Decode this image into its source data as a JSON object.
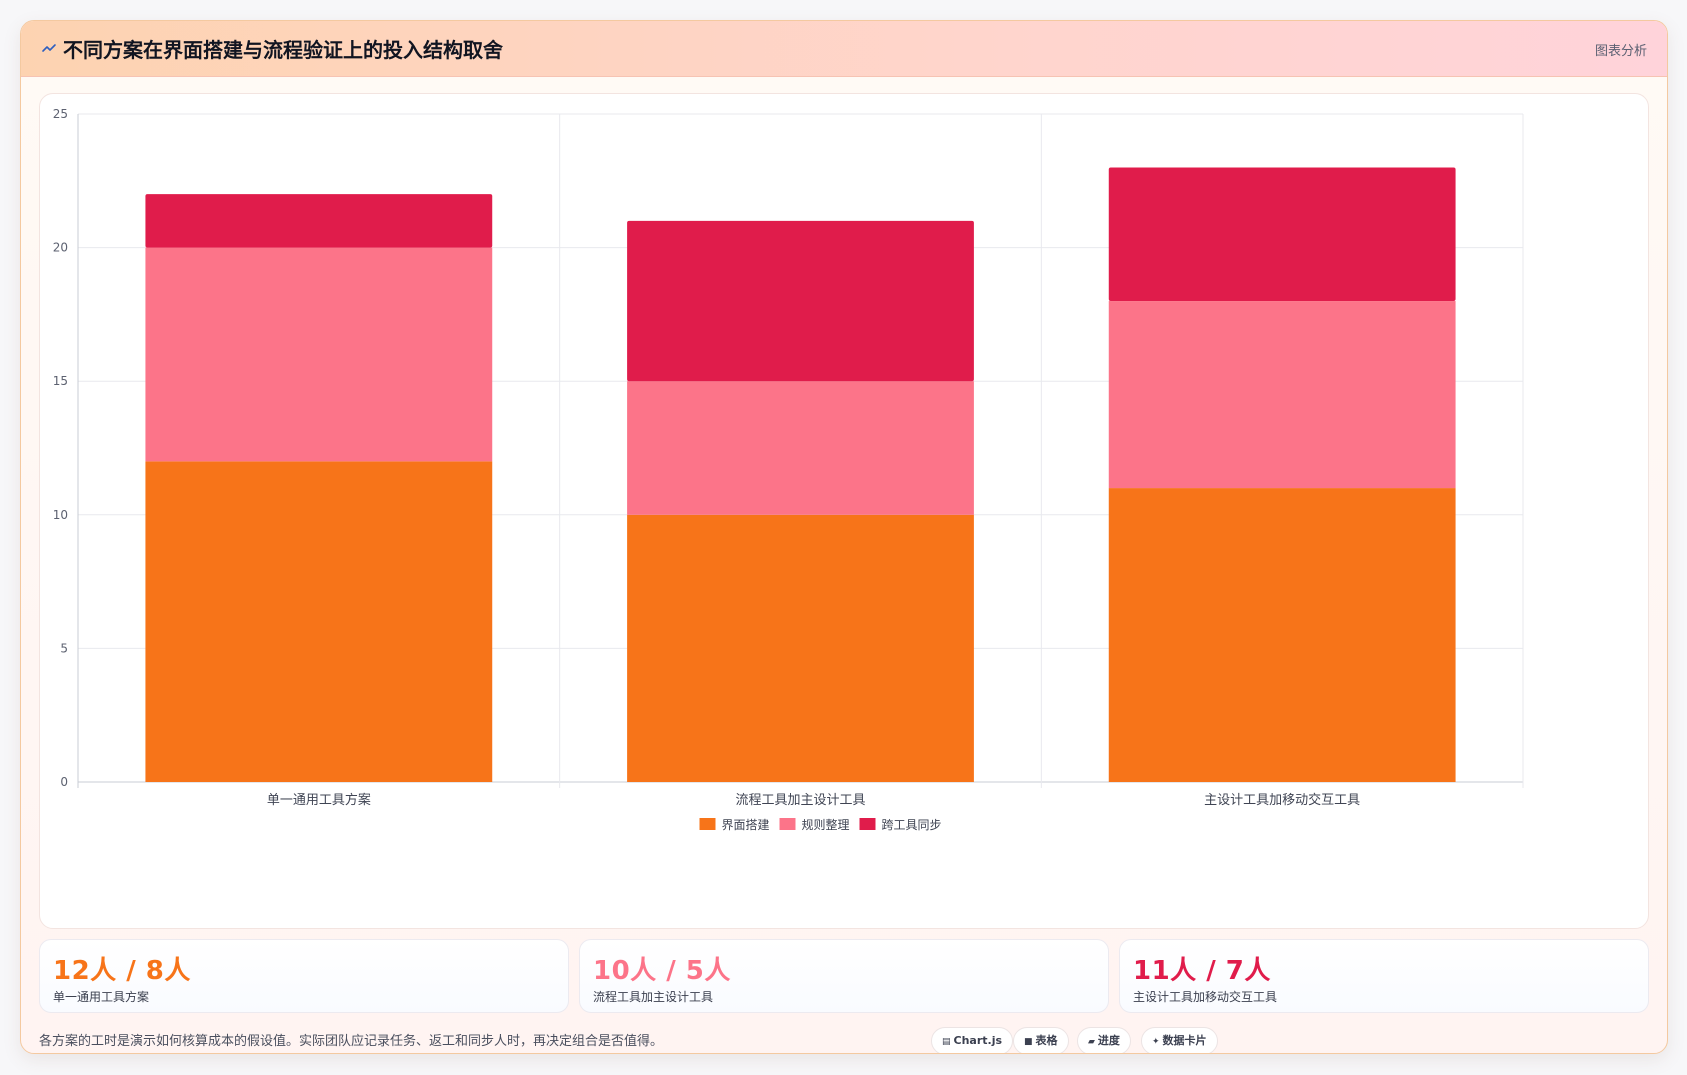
{
  "header": {
    "title": "不同方案在界面搭建与流程验证上的投入结构取舍",
    "mode_label": "图表分析",
    "icon": "trend-line-icon"
  },
  "colors": {
    "orange": "#f77419",
    "pink": "#fc7489",
    "crimson": "#e01c4b"
  },
  "chart_data": {
    "type": "bar",
    "stacked": true,
    "categories": [
      "单一通用工具方案",
      "流程工具加主设计工具",
      "主设计工具加移动交互工具"
    ],
    "series": [
      {
        "name": "界面搭建",
        "values": [
          12,
          10,
          11
        ],
        "color": "#f77419"
      },
      {
        "name": "规则整理",
        "values": [
          8,
          5,
          7
        ],
        "color": "#fc7489"
      },
      {
        "name": "跨工具同步",
        "values": [
          2,
          6,
          5
        ],
        "color": "#e01c4b"
      }
    ],
    "ylim": [
      0,
      25
    ],
    "yticks": [
      "0",
      "5",
      "10",
      "15",
      "20",
      "25"
    ],
    "grid": true,
    "legend_position": "bottom"
  },
  "stats": [
    {
      "value": "12人 / 8人",
      "label": "单一通用工具方案",
      "color": "#f77419"
    },
    {
      "value": "10人 / 5人",
      "label": "流程工具加主设计工具",
      "color": "#fc7489"
    },
    {
      "value": "11人 / 7人",
      "label": "主设计工具加移动交互工具",
      "color": "#e01c4b"
    }
  ],
  "footnote": "各方案的工时是演示如何核算成本的假设值。实际团队应记录任务、返工和同步人时，再决定组合是否值得。",
  "chips": [
    {
      "icon": "chart-icon",
      "glyph": "▤",
      "label": "Chart.js"
    },
    {
      "icon": "table-icon",
      "glyph": "■",
      "label": "表格"
    },
    {
      "icon": "progress-icon",
      "glyph": "▰",
      "label": "进度"
    },
    {
      "icon": "sparkle-icon",
      "glyph": "✦",
      "label": "数据卡片"
    }
  ]
}
